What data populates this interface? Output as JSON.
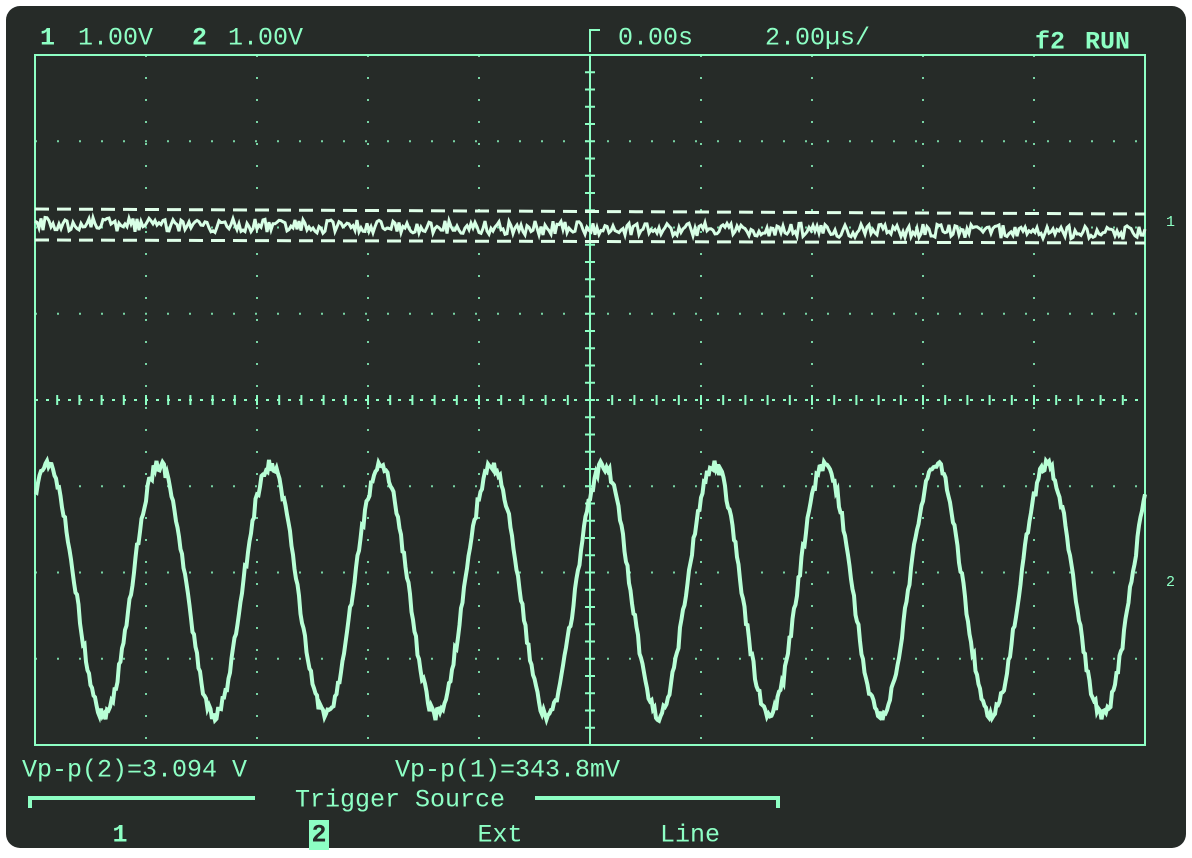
{
  "header": {
    "ch1": "1",
    "ch1_scale": "1.00V",
    "ch2": "2",
    "ch2_scale": "1.00V",
    "time_offset": "0.00s",
    "time_scale": "2.00µs/",
    "trigger": "f2",
    "mode": "RUN"
  },
  "markers": {
    "ch1": "1",
    "ch2": "2"
  },
  "measurements": [
    "Vp-p(2)=3.094 V",
    "Vp-p(1)=343.8mV"
  ],
  "menu": {
    "title": "Trigger Source",
    "options": [
      "1",
      "2",
      "Ext",
      "Line"
    ]
  }
}
